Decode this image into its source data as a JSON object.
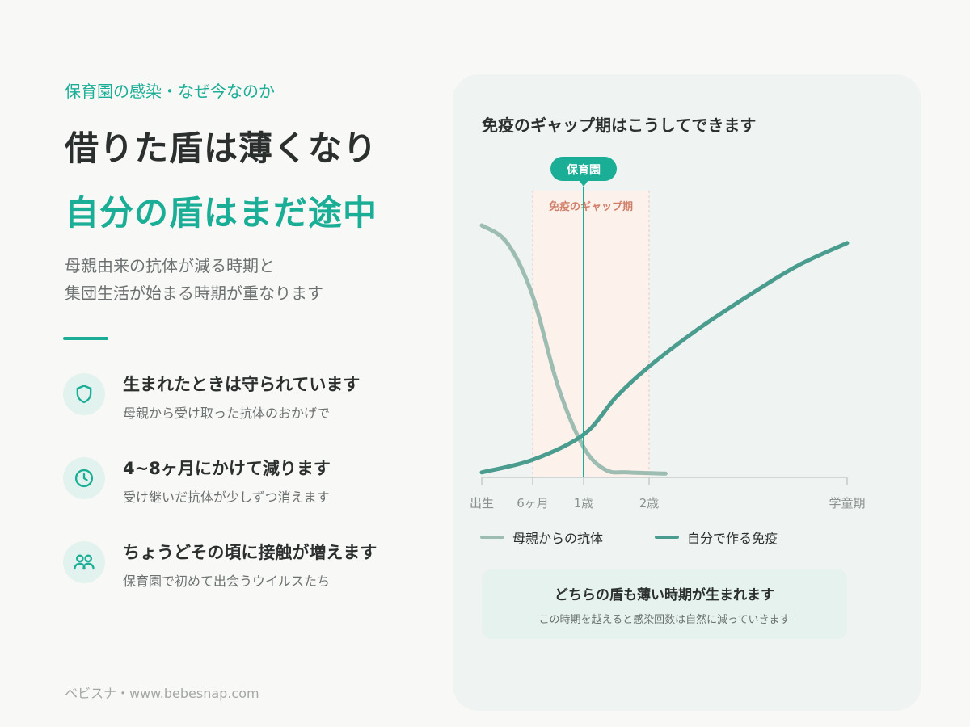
{
  "header": {
    "eyebrow": "保育園の感染・なぜ今なのか",
    "title_line1": "借りた盾は薄くなり",
    "title_line2": "自分の盾はまだ途中",
    "lead_line1": "母親由来の抗体が減る時期と",
    "lead_line2": "集団生活が始まる時期が重なります"
  },
  "points": [
    {
      "icon": "shield-icon",
      "title": "生まれたときは守られています",
      "desc": "母親から受け取った抗体のおかげで"
    },
    {
      "icon": "clock-icon",
      "title": "4~8ヶ月にかけて減ります",
      "desc": "受け継いだ抗体が少しずつ消えます"
    },
    {
      "icon": "people-icon",
      "title": "ちょうどその頃に接触が増えます",
      "desc": "保育園で初めて出会うウイルスたち"
    }
  ],
  "footer": "ベビスナ・www.bebesnap.com",
  "colors": {
    "accent": "#1aae96",
    "maternal": "#9dbdb3",
    "own": "#4a9c8f",
    "gap_fill": "#fdf1ec",
    "gap_label": "#d0806a"
  },
  "chart_data": {
    "type": "line",
    "title": "免疫のギャップ期はこうしてできます",
    "x_ticks": [
      "出生",
      "6ヶ月",
      "1歳",
      "2歳",
      "学童期"
    ],
    "x_tick_months": [
      0,
      6,
      12,
      24,
      60
    ],
    "marker": {
      "label": "保育園",
      "at_month": 12
    },
    "shaded_region": {
      "label": "免疫のギャップ期",
      "from_month": 6,
      "to_month": 24
    },
    "y_range": [
      0,
      1
    ],
    "grid": false,
    "legend_position": "bottom",
    "series": [
      {
        "name": "母親からの抗体",
        "color": "#9dbdb3",
        "points": [
          [
            0,
            1.0
          ],
          [
            3,
            0.93
          ],
          [
            6,
            0.72
          ],
          [
            9,
            0.36
          ],
          [
            12,
            0.12
          ],
          [
            16,
            0.03
          ],
          [
            20,
            0.02
          ],
          [
            27,
            0.015
          ]
        ]
      },
      {
        "name": "自分で作る免疫",
        "color": "#4a9c8f",
        "points": [
          [
            0,
            0.02
          ],
          [
            6,
            0.07
          ],
          [
            12,
            0.17
          ],
          [
            18,
            0.32
          ],
          [
            24,
            0.44
          ],
          [
            33,
            0.59
          ],
          [
            42,
            0.72
          ],
          [
            51,
            0.84
          ],
          [
            60,
            0.93
          ]
        ]
      }
    ]
  },
  "note": {
    "title": "どちらの盾も薄い時期が生まれます",
    "subtitle": "この時期を越えると感染回数は自然に減っていきます"
  }
}
